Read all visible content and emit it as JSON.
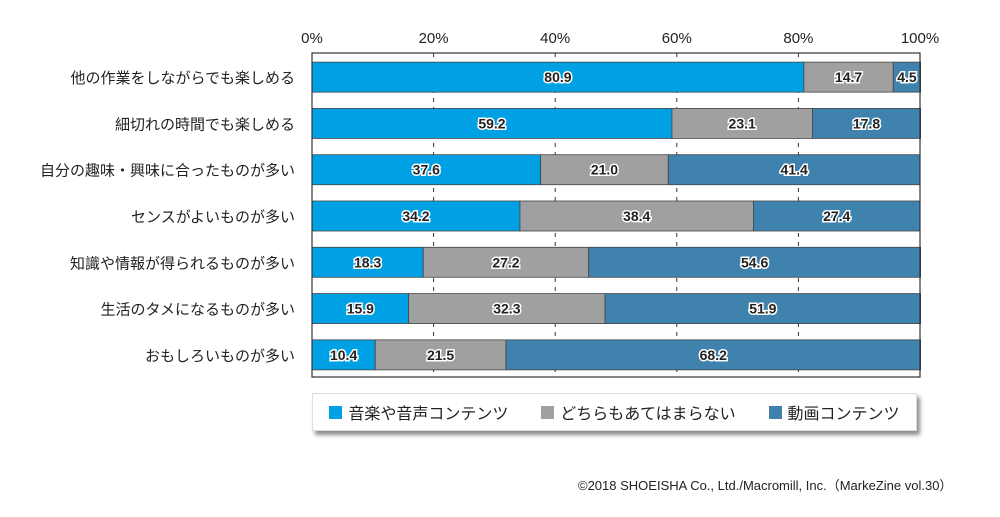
{
  "chart_data": {
    "type": "bar",
    "orientation": "horizontal",
    "stacked": true,
    "title": "",
    "xlabel": "",
    "ylabel": "",
    "xlim": [
      0,
      100
    ],
    "x_ticks": [
      "0%",
      "20%",
      "40%",
      "60%",
      "80%",
      "100%"
    ],
    "grid": "vertical dashed",
    "categories": [
      "他の作業をしながらでも楽しめる",
      "細切れの時間でも楽しめる",
      "自分の趣味・興味に合ったものが多い",
      "センスがよいものが多い",
      "知識や情報が得られるものが多い",
      "生活のタメになるものが多い",
      "おもしろいものが多い"
    ],
    "series": [
      {
        "name": "音楽や音声コンテンツ",
        "color": "#00a0e4",
        "values": [
          80.9,
          59.2,
          37.6,
          34.2,
          18.3,
          15.9,
          10.4
        ]
      },
      {
        "name": "どちらもあてはまらない",
        "color": "#a0a0a0",
        "values": [
          14.7,
          23.1,
          21.0,
          38.4,
          27.2,
          32.3,
          21.5
        ]
      },
      {
        "name": "動画コンテンツ",
        "color": "#3e82ad",
        "values": [
          4.5,
          17.8,
          41.4,
          27.4,
          54.6,
          51.9,
          68.2
        ]
      }
    ],
    "legend_position": "bottom"
  },
  "credit": "©2018 SHOEISHA Co., Ltd./Macromill, Inc.（MarkeZine vol.30）"
}
